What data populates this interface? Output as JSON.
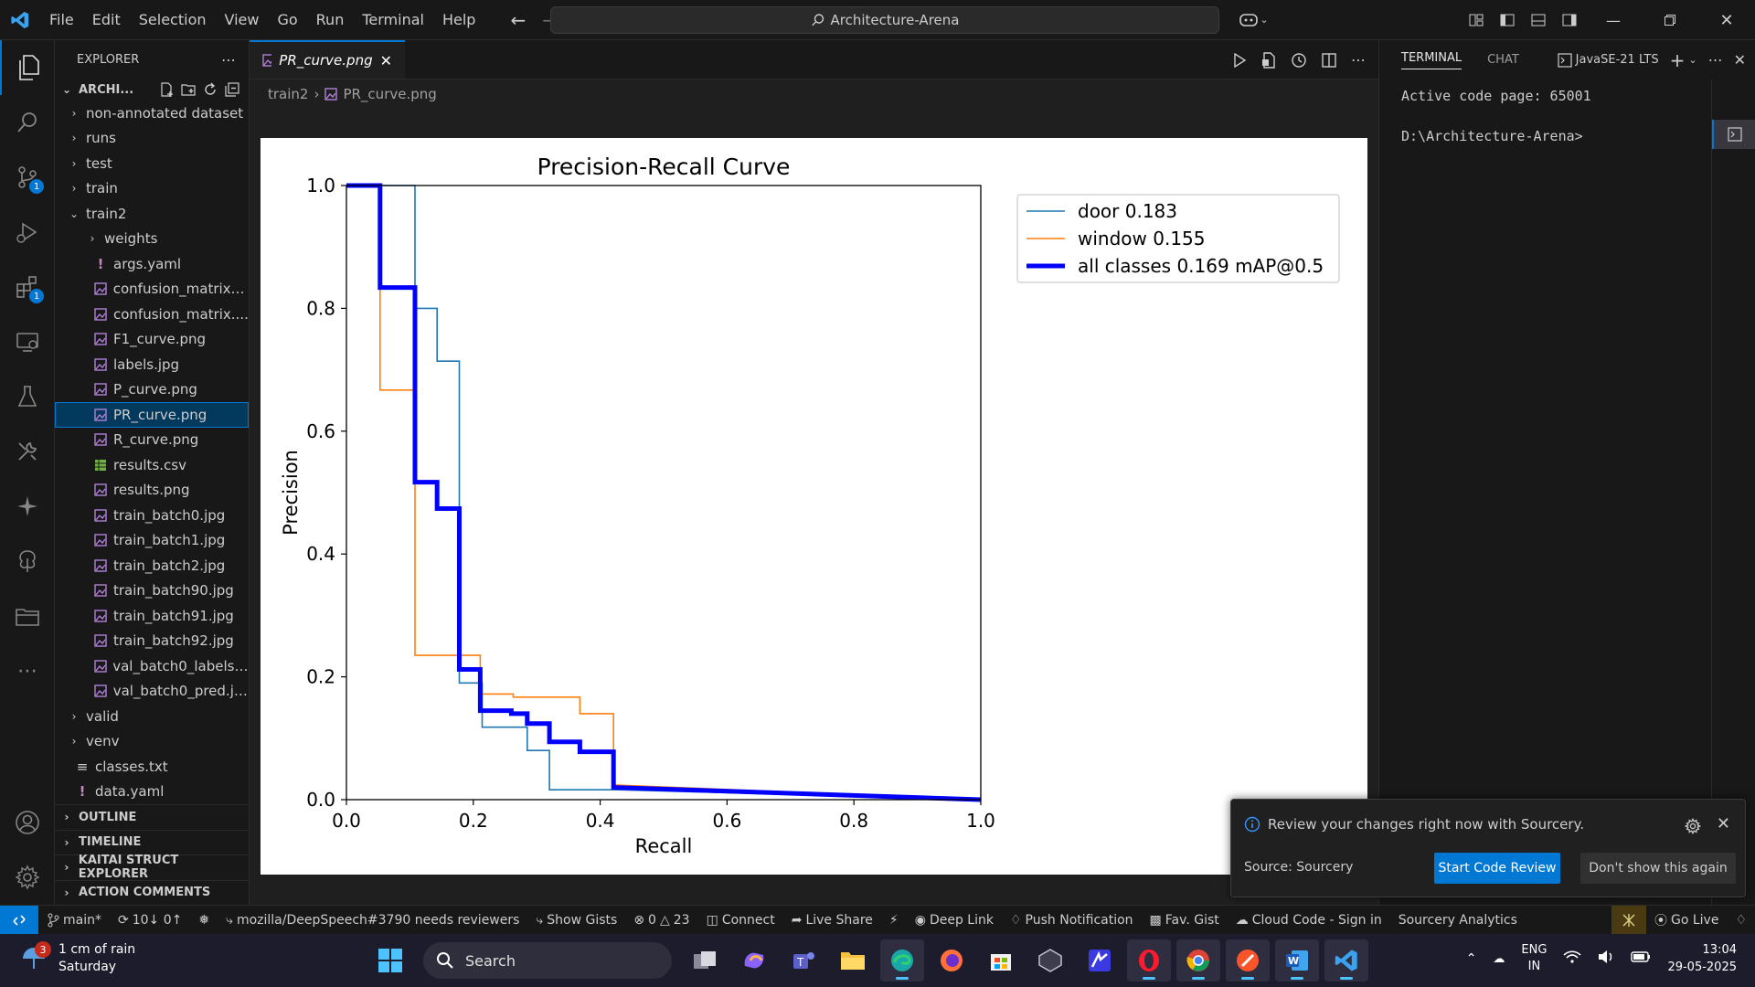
{
  "menu": [
    "File",
    "Edit",
    "Selection",
    "View",
    "Go",
    "Run",
    "Terminal",
    "Help"
  ],
  "command_center": "Architecture-Arena",
  "sidebar": {
    "title": "EXPLORER",
    "root": "ARCHI...",
    "items": [
      {
        "label": "non-annotated dataset",
        "kind": "folder",
        "depth": 1
      },
      {
        "label": "runs",
        "kind": "folder",
        "depth": 1
      },
      {
        "label": "test",
        "kind": "folder",
        "depth": 1
      },
      {
        "label": "train",
        "kind": "folder",
        "depth": 1
      },
      {
        "label": "train2",
        "kind": "folder-open",
        "depth": 1
      },
      {
        "label": "weights",
        "kind": "folder",
        "depth": 2
      },
      {
        "label": "args.yaml",
        "kind": "yaml",
        "depth": 2
      },
      {
        "label": "confusion_matrix_...",
        "kind": "image",
        "depth": 2
      },
      {
        "label": "confusion_matrix....",
        "kind": "image",
        "depth": 2
      },
      {
        "label": "F1_curve.png",
        "kind": "image",
        "depth": 2
      },
      {
        "label": "labels.jpg",
        "kind": "image",
        "depth": 2
      },
      {
        "label": "P_curve.png",
        "kind": "image",
        "depth": 2
      },
      {
        "label": "PR_curve.png",
        "kind": "image",
        "depth": 2,
        "selected": true
      },
      {
        "label": "R_curve.png",
        "kind": "image",
        "depth": 2
      },
      {
        "label": "results.csv",
        "kind": "csv",
        "depth": 2
      },
      {
        "label": "results.png",
        "kind": "image",
        "depth": 2
      },
      {
        "label": "train_batch0.jpg",
        "kind": "image",
        "depth": 2
      },
      {
        "label": "train_batch1.jpg",
        "kind": "image",
        "depth": 2
      },
      {
        "label": "train_batch2.jpg",
        "kind": "image",
        "depth": 2
      },
      {
        "label": "train_batch90.jpg",
        "kind": "image",
        "depth": 2
      },
      {
        "label": "train_batch91.jpg",
        "kind": "image",
        "depth": 2
      },
      {
        "label": "train_batch92.jpg",
        "kind": "image",
        "depth": 2
      },
      {
        "label": "val_batch0_labels.j...",
        "kind": "image",
        "depth": 2
      },
      {
        "label": "val_batch0_pred.jpg",
        "kind": "image",
        "depth": 2
      },
      {
        "label": "valid",
        "kind": "folder",
        "depth": 1
      },
      {
        "label": "venv",
        "kind": "folder",
        "depth": 1
      },
      {
        "label": "classes.txt",
        "kind": "text",
        "depth": 1
      },
      {
        "label": "data.yaml",
        "kind": "yaml",
        "depth": 1
      }
    ],
    "sections": [
      "OUTLINE",
      "TIMELINE",
      "KAITAI STRUCT EXPLORER",
      "ACTION COMMENTS"
    ]
  },
  "editor": {
    "tab_label": "PR_curve.png",
    "breadcrumb": [
      "train2",
      "PR_curve.png"
    ]
  },
  "chart_data": {
    "type": "line",
    "title": "Precision-Recall Curve",
    "xlabel": "Recall",
    "ylabel": "Precision",
    "xlim": [
      0.0,
      1.0
    ],
    "ylim": [
      0.0,
      1.0
    ],
    "xticks": [
      "0.0",
      "0.2",
      "0.4",
      "0.6",
      "0.8",
      "1.0"
    ],
    "yticks": [
      "0.0",
      "0.2",
      "0.4",
      "0.6",
      "0.8",
      "1.0"
    ],
    "legend_position": "upper-right-outside",
    "series": [
      {
        "name": "door 0.183",
        "color": "#1f77b4",
        "x": [
          0.0,
          0.108,
          0.108,
          0.143,
          0.143,
          0.178,
          0.178,
          0.214,
          0.214,
          0.285,
          0.285,
          0.32,
          0.32,
          0.43,
          0.43,
          1.0
        ],
        "y": [
          1.0,
          1.0,
          0.8,
          0.8,
          0.714,
          0.714,
          0.19,
          0.19,
          0.118,
          0.118,
          0.08,
          0.08,
          0.016,
          0.016,
          0.016,
          0.0
        ]
      },
      {
        "name": "window 0.155",
        "color": "#ff7f0e",
        "x": [
          0.0,
          0.053,
          0.053,
          0.108,
          0.108,
          0.211,
          0.211,
          0.263,
          0.263,
          0.368,
          0.368,
          0.421,
          0.421,
          1.0
        ],
        "y": [
          1.0,
          1.0,
          0.667,
          0.667,
          0.235,
          0.235,
          0.172,
          0.172,
          0.167,
          0.167,
          0.14,
          0.14,
          0.024,
          0.0
        ]
      },
      {
        "name": "all classes 0.169 mAP@0.5",
        "color": "#0000ff",
        "x": [
          0.0,
          0.053,
          0.053,
          0.108,
          0.108,
          0.143,
          0.143,
          0.178,
          0.178,
          0.211,
          0.211,
          0.26,
          0.26,
          0.285,
          0.285,
          0.32,
          0.32,
          0.368,
          0.368,
          0.421,
          0.421,
          1.0
        ],
        "y": [
          1.0,
          1.0,
          0.834,
          0.834,
          0.517,
          0.517,
          0.474,
          0.474,
          0.212,
          0.212,
          0.145,
          0.145,
          0.14,
          0.14,
          0.124,
          0.124,
          0.094,
          0.094,
          0.078,
          0.078,
          0.02,
          0.0
        ]
      }
    ]
  },
  "panel": {
    "tabs": [
      "TERMINAL",
      "CHAT"
    ],
    "shell": "JavaSE-21 LTS",
    "terminal_lines": [
      "Active code page: 65001",
      "",
      "D:\\Architecture-Arena>"
    ]
  },
  "notification": {
    "message": "Review your changes right now with Sourcery.",
    "source": "Source: Sourcery",
    "primary": "Start Code Review",
    "secondary": "Don't show this again"
  },
  "statusbar": {
    "branch": "main*",
    "sync": "10↓ 0↑",
    "pr": "mozilla/DeepSpeech#3790 needs reviewers",
    "gists": "Show Gists",
    "errors": "0",
    "warnings": "23",
    "connect": "Connect",
    "live_share": "Live Share",
    "deep_link": "Deep Link",
    "push": "Push Notification",
    "fav_gist": "Fav. Gist",
    "cloud_code": "Cloud Code - Sign in",
    "sourcery": "Sourcery Analytics",
    "go_live": "Go Live"
  },
  "taskbar": {
    "weather_badge": "3",
    "weather_line1": "1 cm of rain",
    "weather_line2": "Saturday",
    "search": "Search",
    "lang1": "ENG",
    "lang2": "IN",
    "time": "13:04",
    "date": "29-05-2025"
  }
}
